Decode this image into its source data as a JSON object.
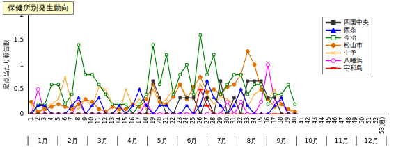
{
  "chart_data": {
    "type": "line",
    "title": "保健所別発生動向",
    "y_label": "定点当たり報告数",
    "categories": [
      "1",
      "2",
      "3",
      "4",
      "5",
      "6",
      "7",
      "8",
      "9",
      "10",
      "11",
      "12",
      "13",
      "14",
      "15",
      "16",
      "17",
      "18",
      "19",
      "20",
      "21",
      "22",
      "23",
      "24",
      "25",
      "26",
      "27",
      "28",
      "29",
      "30",
      "31",
      "32",
      "33",
      "34",
      "35",
      "36",
      "37",
      "38",
      "39",
      "40",
      "41",
      "42",
      "43",
      "44",
      "45",
      "46",
      "47",
      "48",
      "49",
      "50",
      "51",
      "52",
      "53(週)"
    ],
    "month_labels": [
      "1月",
      "2月",
      "3月",
      "4月",
      "5月",
      "6月",
      "7月",
      "8月",
      "9月",
      "10月",
      "11月",
      "12月"
    ],
    "ylim": [
      0,
      2
    ],
    "yticks": [
      0,
      0.5,
      1,
      1.5,
      2
    ],
    "grid": false,
    "legend": "top right",
    "series": [
      {
        "name": "四国中央",
        "color": "#333333",
        "marker": "square",
        "values": [
          0,
          0,
          0,
          0,
          0,
          0,
          0,
          0,
          0,
          0,
          0,
          0,
          0,
          0,
          0,
          0,
          0,
          0,
          0.67,
          0.33,
          0,
          0,
          0.33,
          0.33,
          0.33,
          0,
          0.33,
          0,
          0.67,
          0,
          0.33,
          0,
          0.67,
          0.67,
          0.67,
          0.33,
          0.33,
          0,
          0,
          0,
          null,
          null,
          null,
          null,
          null,
          null,
          null,
          null,
          null,
          null,
          null,
          null,
          null
        ]
      },
      {
        "name": "西条",
        "color": "#0000ff",
        "marker": "triangle",
        "values": [
          0,
          0.17,
          0.17,
          0,
          0,
          0,
          0.17,
          0.33,
          0,
          0.17,
          0.33,
          0,
          0,
          0.17,
          0,
          0.17,
          0.5,
          0.17,
          0,
          0.17,
          0.17,
          0,
          0,
          0.17,
          0,
          0.17,
          0.67,
          0.33,
          0.17,
          0,
          0.17,
          0.5,
          0.17,
          0,
          0,
          0,
          0.17,
          0.33,
          0,
          0,
          null,
          null,
          null,
          null,
          null,
          null,
          null,
          null,
          null,
          null,
          null,
          null,
          null
        ]
      },
      {
        "name": "今治",
        "color": "#008000",
        "marker": "square_open",
        "values": [
          0,
          0.2,
          0.2,
          0.6,
          0.6,
          0.2,
          0.4,
          1.4,
          0.8,
          0.8,
          0.6,
          0.4,
          0.2,
          0.2,
          0.2,
          0,
          0.2,
          0.4,
          1.4,
          0.6,
          1.2,
          0.4,
          0.8,
          1.0,
          0.4,
          1.6,
          0.8,
          1.2,
          0.4,
          0.6,
          0.8,
          0.8,
          0.4,
          0.6,
          0.6,
          0.2,
          0.4,
          0.4,
          0.6,
          0.2,
          null,
          null,
          null,
          null,
          null,
          null,
          null,
          null,
          null,
          null,
          null,
          null,
          null
        ]
      },
      {
        "name": "松山市",
        "color": "#e07000",
        "marker": "circle",
        "values": [
          0.25,
          0.05,
          0.1,
          0.15,
          0.2,
          0.15,
          0.1,
          0.2,
          0.3,
          0.25,
          0.1,
          0.05,
          0.15,
          0.1,
          0.1,
          0.2,
          0.15,
          0.3,
          0.6,
          0.25,
          0.2,
          0.35,
          0.6,
          0.3,
          0.55,
          0.75,
          0.45,
          0.5,
          0.4,
          0.55,
          0.6,
          0.8,
          1.27,
          1.0,
          0.5,
          0.3,
          0.15,
          0.2,
          0.1,
          0.05,
          null,
          null,
          null,
          null,
          null,
          null,
          null,
          null,
          null,
          null,
          null,
          null,
          null
        ]
      },
      {
        "name": "中予",
        "color": "#ffb040",
        "marker": "x",
        "values": [
          0.2,
          0,
          0.15,
          0.2,
          0.3,
          0.75,
          0.2,
          0.1,
          0.3,
          0.15,
          0.55,
          0.5,
          0.2,
          0,
          0.5,
          0.15,
          0.3,
          0.1,
          0.5,
          0.2,
          0.3,
          0.5,
          0.6,
          0.35,
          0.3,
          0.6,
          0.4,
          0.2,
          0.35,
          0.3,
          0.2,
          0.5,
          0.15,
          0.4,
          0.5,
          0.3,
          0.5,
          0.2,
          0.1,
          0,
          null,
          null,
          null,
          null,
          null,
          null,
          null,
          null,
          null,
          null,
          null,
          null,
          null
        ]
      },
      {
        "name": "八幡浜",
        "color": "#ff00ff",
        "marker": "circle_open",
        "values": [
          0,
          0.5,
          0,
          0,
          0,
          0,
          0,
          0.25,
          0,
          0,
          0,
          0,
          0,
          0,
          0,
          0,
          0,
          0.25,
          0,
          0,
          0,
          0,
          0,
          0,
          0,
          0,
          0,
          0,
          0,
          0.25,
          0,
          0.25,
          0,
          0,
          0.25,
          1.0,
          0.25,
          0.25,
          0,
          0,
          null,
          null,
          null,
          null,
          null,
          null,
          null,
          null,
          null,
          null,
          null,
          null,
          null
        ]
      },
      {
        "name": "宇和島",
        "color": "#ff0000",
        "marker": "dash",
        "values": [
          0,
          0,
          0,
          0,
          0,
          0,
          0,
          0,
          0,
          0,
          0,
          0,
          0,
          0,
          0,
          0,
          0,
          0,
          0,
          0,
          0,
          0,
          0,
          0,
          0,
          0.5,
          0.17,
          0,
          0,
          0,
          0,
          0,
          0,
          0,
          0,
          0,
          0,
          0,
          0,
          0,
          null,
          null,
          null,
          null,
          null,
          null,
          null,
          null,
          null,
          null,
          null,
          null,
          null
        ]
      }
    ]
  }
}
